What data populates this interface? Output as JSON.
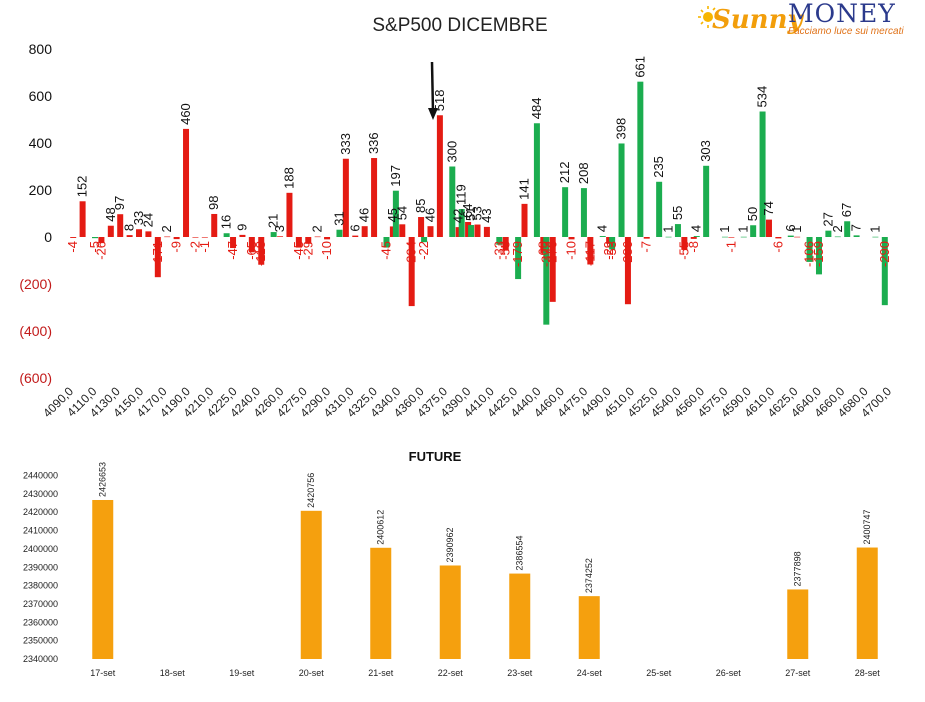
{
  "logo": {
    "word1": "Sunny",
    "word2": "MONEY",
    "tagline": "Facciamo luce sui mercati"
  },
  "colors": {
    "positive": "#1bad4f",
    "negative": "#e41b13",
    "future": "#f5a00e",
    "negative_tick": "#c21a1a"
  },
  "chart_data": [
    {
      "type": "bar",
      "title": "S&P500 DICEMBRE",
      "ylim": [
        -600,
        800
      ],
      "yticks": [
        800,
        600,
        400,
        200,
        0,
        -200,
        -400,
        -600
      ],
      "ytick_labels": [
        "800",
        "600",
        "400",
        "200",
        "0",
        "(200)",
        "(400)",
        "(600)"
      ],
      "x_labels": [
        "4090,0",
        "4110,0",
        "4130,0",
        "4150,0",
        "4170,0",
        "4190,0",
        "4210,0",
        "4225,0",
        "4240,0",
        "4260,0",
        "4275,0",
        "4290,0",
        "4310,0",
        "4325,0",
        "4340,0",
        "4360,0",
        "4375,0",
        "4390,0",
        "4410,0",
        "4425,0",
        "4440,0",
        "4460,0",
        "4475,0",
        "4490,0",
        "4510,0",
        "4525,0",
        "4540,0",
        "4560,0",
        "4575,0",
        "4590,0",
        "4610,0",
        "4625,0",
        "4640,0",
        "4660,0",
        "4680,0",
        "4700,0"
      ],
      "series": [
        {
          "color": "red",
          "values": [
            {
              "i": 0,
              "v": -4
            },
            {
              "i": 1,
              "v": 152
            },
            {
              "i": 3,
              "v": -26
            },
            {
              "i": 4,
              "v": 48
            },
            {
              "i": 5,
              "v": 97
            },
            {
              "i": 6,
              "v": 8
            },
            {
              "i": 7,
              "v": 33
            },
            {
              "i": 8,
              "v": 24
            },
            {
              "i": 9,
              "v": -171
            },
            {
              "i": 10,
              "v": 2
            },
            {
              "i": 11,
              "v": -9
            },
            {
              "i": 12,
              "v": 460
            },
            {
              "i": 13,
              "v": -2
            },
            {
              "i": 14,
              "v": -1
            },
            {
              "i": 15,
              "v": 98
            },
            {
              "i": 17,
              "v": -47
            },
            {
              "i": 18,
              "v": 9
            },
            {
              "i": 19,
              "v": -65
            },
            {
              "i": 20,
              "v": -118
            },
            {
              "i": 22,
              "v": 3
            },
            {
              "i": 23,
              "v": 188
            },
            {
              "i": 24,
              "v": -45
            },
            {
              "i": 25,
              "v": -29
            },
            {
              "i": 26,
              "v": 2
            },
            {
              "i": 27,
              "v": -10
            },
            {
              "i": 29,
              "v": 333
            },
            {
              "i": 30,
              "v": 6
            },
            {
              "i": 31,
              "v": 46
            },
            {
              "i": 32,
              "v": 336
            },
            {
              "i": 34,
              "v": 45
            },
            {
              "i": 35,
              "v": 54
            },
            {
              "i": 36,
              "v": -294
            },
            {
              "i": 37,
              "v": 85
            },
            {
              "i": 38,
              "v": 46
            },
            {
              "i": 39,
              "v": 518
            },
            {
              "i": 41,
              "v": 42
            },
            {
              "i": 42,
              "v": 64
            },
            {
              "i": 43,
              "v": 53
            },
            {
              "i": 44,
              "v": 43
            },
            {
              "i": 46,
              "v": -58
            },
            {
              "i": 48,
              "v": 141
            },
            {
              "i": 50,
              "v": -68
            },
            {
              "i": 51,
              "v": -276
            },
            {
              "i": 53,
              "v": -10
            },
            {
              "i": 55,
              "v": -117
            },
            {
              "i": 57,
              "v": -29
            },
            {
              "i": 59,
              "v": -286
            },
            {
              "i": 61,
              "v": -7
            },
            {
              "i": 65,
              "v": -55
            },
            {
              "i": 66,
              "v": -8
            },
            {
              "i": 70,
              "v": -1
            },
            {
              "i": 74,
              "v": 74
            },
            {
              "i": 75,
              "v": -6
            },
            {
              "i": 77,
              "v": 1
            }
          ]
        },
        {
          "color": "green",
          "values": [
            {
              "i": 2,
              "v": -5
            },
            {
              "i": 16,
              "v": 16
            },
            {
              "i": 21,
              "v": 21
            },
            {
              "i": 28,
              "v": 31
            },
            {
              "i": 33,
              "v": -45
            },
            {
              "i": 34,
              "v": 197
            },
            {
              "i": 37,
              "v": -22
            },
            {
              "i": 40,
              "v": 300
            },
            {
              "i": 41,
              "v": 119
            },
            {
              "i": 42,
              "v": 51
            },
            {
              "i": 45,
              "v": -33
            },
            {
              "i": 47,
              "v": -179
            },
            {
              "i": 49,
              "v": 484
            },
            {
              "i": 50,
              "v": -373
            },
            {
              "i": 52,
              "v": 212
            },
            {
              "i": 54,
              "v": 208
            },
            {
              "i": 56,
              "v": 4
            },
            {
              "i": 57,
              "v": -53
            },
            {
              "i": 58,
              "v": 398
            },
            {
              "i": 60,
              "v": 661
            },
            {
              "i": 62,
              "v": 235
            },
            {
              "i": 63,
              "v": 1
            },
            {
              "i": 64,
              "v": 55
            },
            {
              "i": 66,
              "v": 4
            },
            {
              "i": 67,
              "v": 303
            },
            {
              "i": 69,
              "v": 1
            },
            {
              "i": 71,
              "v": 1
            },
            {
              "i": 72,
              "v": 50
            },
            {
              "i": 73,
              "v": 534
            },
            {
              "i": 76,
              "v": 6
            },
            {
              "i": 78,
              "v": -106
            },
            {
              "i": 79,
              "v": -159
            },
            {
              "i": 80,
              "v": 27
            },
            {
              "i": 81,
              "v": 2
            },
            {
              "i": 82,
              "v": 67
            },
            {
              "i": 83,
              "v": 7
            },
            {
              "i": 85,
              "v": 1
            },
            {
              "i": 86,
              "v": -290
            }
          ]
        }
      ]
    },
    {
      "type": "bar",
      "title": "FUTURE",
      "ylim": [
        2340000,
        2440000
      ],
      "yticks": [
        2440000,
        2430000,
        2420000,
        2410000,
        2400000,
        2390000,
        2380000,
        2370000,
        2360000,
        2350000,
        2340000
      ],
      "categories": [
        "17-set",
        "18-set",
        "19-set",
        "20-set",
        "21-set",
        "22-set",
        "23-set",
        "24-set",
        "25-set",
        "26-set",
        "27-set",
        "28-set"
      ],
      "values": [
        2426653,
        null,
        null,
        2420756,
        2400612,
        2390962,
        2386554,
        2374252,
        null,
        null,
        2377898,
        2400747
      ]
    }
  ]
}
